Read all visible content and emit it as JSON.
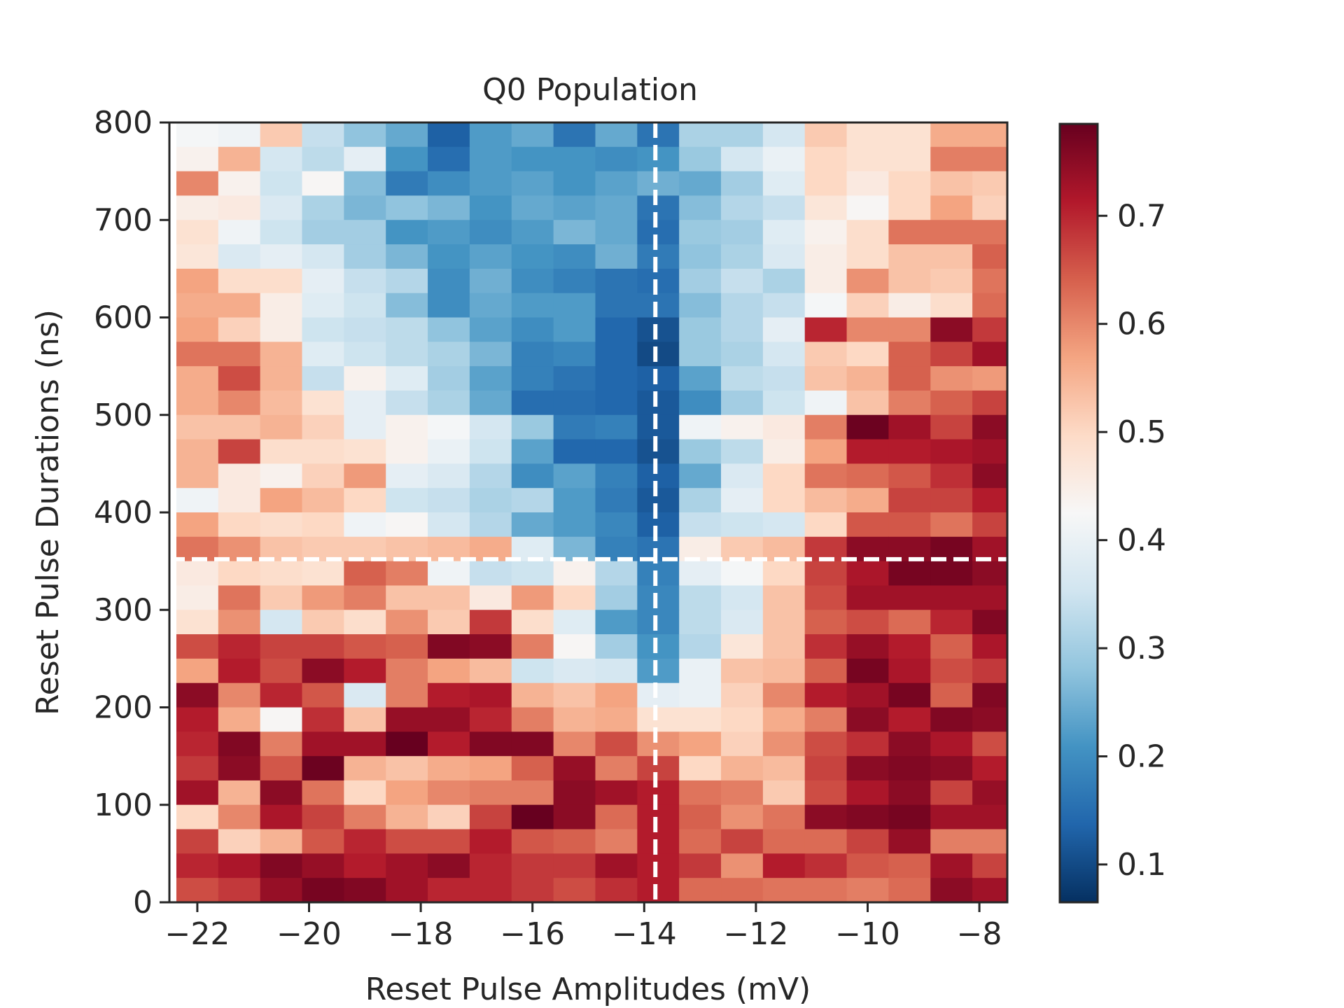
{
  "chart_data": {
    "type": "heatmap",
    "title": "Q0 Population",
    "xlabel": "Reset Pulse Amplitudes (mV)",
    "ylabel": "Reset Pulse Durations (ns)",
    "colormap": "RdBu_r",
    "xlim": [
      -22.5,
      -7.5
    ],
    "ylim": [
      0,
      800
    ],
    "x_ticks": [
      "−22",
      "−20",
      "−18",
      "−16",
      "−14",
      "−12",
      "−10",
      "−8"
    ],
    "x_tick_values": [
      -22,
      -20,
      -18,
      -16,
      -14,
      -12,
      -10,
      -8
    ],
    "y_ticks": [
      "0",
      "100",
      "200",
      "300",
      "400",
      "500",
      "600",
      "700",
      "800"
    ],
    "y_tick_values": [
      0,
      100,
      200,
      300,
      400,
      500,
      600,
      700,
      800
    ],
    "colorbar": {
      "vmin": 0.065,
      "vmax": 0.785,
      "ticks": [
        "0.1",
        "0.2",
        "0.3",
        "0.4",
        "0.5",
        "0.6",
        "0.7"
      ],
      "tick_values": [
        0.1,
        0.2,
        0.3,
        0.4,
        0.5,
        0.6,
        0.7
      ]
    },
    "x_centers": [
      -22,
      -21.25,
      -20.5,
      -19.75,
      -19,
      -18.25,
      -17.5,
      -16.75,
      -16,
      -15.25,
      -14.5,
      -13.75,
      -13,
      -12.25,
      -11.5,
      -10.75,
      -10,
      -9.25,
      -8.5,
      -7.75
    ],
    "y_centers": [
      12.5,
      37.5,
      62.5,
      87.5,
      112.5,
      137.5,
      162.5,
      187.5,
      212.5,
      237.5,
      262.5,
      287.5,
      312.5,
      337.5,
      362.5,
      387.5,
      412.5,
      437.5,
      462.5,
      487.5,
      512.5,
      537.5,
      562.5,
      587.5,
      612.5,
      637.5,
      662.5,
      687.5,
      712.5,
      737.5,
      762.5,
      787.5
    ],
    "z_rows_top_to_bottom": [
      [
        0.42,
        0.41,
        0.52,
        0.34,
        0.28,
        0.24,
        0.13,
        0.22,
        0.24,
        0.16,
        0.24,
        0.16,
        0.31,
        0.31,
        0.36,
        0.52,
        0.48,
        0.48,
        0.56,
        0.56
      ],
      [
        0.44,
        0.55,
        0.36,
        0.33,
        0.39,
        0.21,
        0.15,
        0.22,
        0.21,
        0.21,
        0.2,
        0.21,
        0.29,
        0.36,
        0.4,
        0.5,
        0.48,
        0.48,
        0.61,
        0.61
      ],
      [
        0.6,
        0.44,
        0.35,
        0.43,
        0.27,
        0.17,
        0.2,
        0.22,
        0.23,
        0.21,
        0.23,
        0.25,
        0.24,
        0.3,
        0.38,
        0.5,
        0.46,
        0.5,
        0.53,
        0.52
      ],
      [
        0.45,
        0.46,
        0.37,
        0.31,
        0.26,
        0.28,
        0.26,
        0.21,
        0.24,
        0.23,
        0.24,
        0.16,
        0.27,
        0.32,
        0.34,
        0.47,
        0.43,
        0.5,
        0.57,
        0.51
      ],
      [
        0.48,
        0.41,
        0.35,
        0.3,
        0.3,
        0.21,
        0.22,
        0.2,
        0.22,
        0.26,
        0.24,
        0.15,
        0.29,
        0.3,
        0.38,
        0.44,
        0.49,
        0.62,
        0.62,
        0.62
      ],
      [
        0.47,
        0.37,
        0.39,
        0.36,
        0.3,
        0.26,
        0.21,
        0.23,
        0.21,
        0.2,
        0.25,
        0.17,
        0.28,
        0.31,
        0.37,
        0.45,
        0.49,
        0.53,
        0.53,
        0.64
      ],
      [
        0.57,
        0.49,
        0.49,
        0.39,
        0.34,
        0.32,
        0.2,
        0.25,
        0.2,
        0.18,
        0.16,
        0.15,
        0.3,
        0.34,
        0.31,
        0.45,
        0.59,
        0.53,
        0.52,
        0.62
      ],
      [
        0.56,
        0.56,
        0.45,
        0.38,
        0.35,
        0.27,
        0.2,
        0.24,
        0.22,
        0.22,
        0.16,
        0.16,
        0.27,
        0.32,
        0.34,
        0.42,
        0.51,
        0.45,
        0.49,
        0.63
      ],
      [
        0.57,
        0.51,
        0.45,
        0.35,
        0.34,
        0.33,
        0.28,
        0.23,
        0.2,
        0.22,
        0.14,
        0.11,
        0.29,
        0.32,
        0.39,
        0.7,
        0.6,
        0.6,
        0.75,
        0.68
      ],
      [
        0.62,
        0.62,
        0.55,
        0.38,
        0.35,
        0.33,
        0.31,
        0.26,
        0.18,
        0.19,
        0.14,
        0.1,
        0.29,
        0.31,
        0.36,
        0.52,
        0.5,
        0.64,
        0.67,
        0.73
      ],
      [
        0.56,
        0.66,
        0.55,
        0.34,
        0.44,
        0.38,
        0.3,
        0.23,
        0.18,
        0.16,
        0.14,
        0.13,
        0.23,
        0.33,
        0.34,
        0.53,
        0.55,
        0.64,
        0.59,
        0.58
      ],
      [
        0.56,
        0.6,
        0.54,
        0.48,
        0.39,
        0.34,
        0.31,
        0.24,
        0.15,
        0.15,
        0.14,
        0.12,
        0.2,
        0.3,
        0.35,
        0.41,
        0.53,
        0.61,
        0.64,
        0.67
      ],
      [
        0.53,
        0.53,
        0.55,
        0.51,
        0.39,
        0.44,
        0.42,
        0.36,
        0.29,
        0.17,
        0.18,
        0.12,
        0.41,
        0.44,
        0.46,
        0.61,
        0.78,
        0.73,
        0.67,
        0.75
      ],
      [
        0.55,
        0.67,
        0.49,
        0.49,
        0.48,
        0.44,
        0.4,
        0.35,
        0.23,
        0.14,
        0.14,
        0.11,
        0.29,
        0.33,
        0.45,
        0.57,
        0.71,
        0.71,
        0.72,
        0.73
      ],
      [
        0.55,
        0.46,
        0.44,
        0.51,
        0.58,
        0.39,
        0.37,
        0.32,
        0.2,
        0.23,
        0.18,
        0.13,
        0.24,
        0.37,
        0.5,
        0.62,
        0.63,
        0.65,
        0.69,
        0.75
      ],
      [
        0.41,
        0.46,
        0.57,
        0.54,
        0.5,
        0.35,
        0.34,
        0.31,
        0.32,
        0.22,
        0.17,
        0.12,
        0.31,
        0.39,
        0.5,
        0.54,
        0.56,
        0.67,
        0.67,
        0.71
      ],
      [
        0.57,
        0.5,
        0.49,
        0.5,
        0.41,
        0.43,
        0.36,
        0.32,
        0.24,
        0.22,
        0.19,
        0.13,
        0.34,
        0.35,
        0.36,
        0.5,
        0.65,
        0.65,
        0.62,
        0.67
      ],
      [
        0.62,
        0.59,
        0.53,
        0.52,
        0.52,
        0.53,
        0.54,
        0.56,
        0.38,
        0.26,
        0.18,
        0.16,
        0.45,
        0.52,
        0.54,
        0.68,
        0.75,
        0.75,
        0.77,
        0.73
      ],
      [
        0.46,
        0.5,
        0.49,
        0.48,
        0.64,
        0.61,
        0.41,
        0.34,
        0.35,
        0.44,
        0.32,
        0.18,
        0.39,
        0.42,
        0.5,
        0.67,
        0.72,
        0.77,
        0.77,
        0.75
      ],
      [
        0.45,
        0.62,
        0.52,
        0.58,
        0.61,
        0.53,
        0.53,
        0.46,
        0.58,
        0.5,
        0.3,
        0.19,
        0.33,
        0.36,
        0.53,
        0.66,
        0.73,
        0.73,
        0.73,
        0.73
      ],
      [
        0.48,
        0.59,
        0.36,
        0.52,
        0.49,
        0.59,
        0.52,
        0.68,
        0.49,
        0.38,
        0.22,
        0.19,
        0.33,
        0.37,
        0.53,
        0.64,
        0.66,
        0.63,
        0.7,
        0.76
      ],
      [
        0.66,
        0.7,
        0.67,
        0.67,
        0.65,
        0.64,
        0.76,
        0.75,
        0.61,
        0.43,
        0.3,
        0.21,
        0.32,
        0.47,
        0.53,
        0.69,
        0.74,
        0.71,
        0.64,
        0.72
      ],
      [
        0.57,
        0.71,
        0.66,
        0.75,
        0.71,
        0.61,
        0.57,
        0.54,
        0.35,
        0.37,
        0.36,
        0.22,
        0.4,
        0.53,
        0.54,
        0.64,
        0.77,
        0.72,
        0.66,
        0.68
      ],
      [
        0.75,
        0.6,
        0.7,
        0.65,
        0.37,
        0.61,
        0.71,
        0.72,
        0.55,
        0.53,
        0.57,
        0.39,
        0.4,
        0.51,
        0.6,
        0.71,
        0.73,
        0.77,
        0.64,
        0.76
      ],
      [
        0.71,
        0.56,
        0.43,
        0.69,
        0.53,
        0.74,
        0.74,
        0.7,
        0.61,
        0.55,
        0.56,
        0.48,
        0.48,
        0.5,
        0.56,
        0.61,
        0.75,
        0.71,
        0.76,
        0.75
      ],
      [
        0.7,
        0.76,
        0.61,
        0.73,
        0.73,
        0.79,
        0.71,
        0.76,
        0.76,
        0.6,
        0.66,
        0.59,
        0.57,
        0.51,
        0.59,
        0.66,
        0.69,
        0.75,
        0.72,
        0.66
      ],
      [
        0.68,
        0.75,
        0.65,
        0.78,
        0.55,
        0.53,
        0.56,
        0.57,
        0.64,
        0.74,
        0.61,
        0.67,
        0.5,
        0.55,
        0.54,
        0.67,
        0.75,
        0.76,
        0.75,
        0.71
      ],
      [
        0.73,
        0.55,
        0.75,
        0.62,
        0.5,
        0.57,
        0.6,
        0.61,
        0.61,
        0.75,
        0.73,
        0.71,
        0.62,
        0.61,
        0.52,
        0.66,
        0.72,
        0.75,
        0.67,
        0.74
      ],
      [
        0.5,
        0.6,
        0.72,
        0.67,
        0.61,
        0.55,
        0.51,
        0.67,
        0.79,
        0.75,
        0.63,
        0.71,
        0.64,
        0.59,
        0.62,
        0.75,
        0.76,
        0.77,
        0.73,
        0.73
      ],
      [
        0.67,
        0.51,
        0.55,
        0.65,
        0.7,
        0.66,
        0.66,
        0.71,
        0.65,
        0.64,
        0.61,
        0.71,
        0.63,
        0.67,
        0.63,
        0.63,
        0.67,
        0.74,
        0.61,
        0.61
      ],
      [
        0.7,
        0.72,
        0.76,
        0.74,
        0.71,
        0.73,
        0.75,
        0.7,
        0.68,
        0.68,
        0.73,
        0.71,
        0.68,
        0.59,
        0.71,
        0.69,
        0.65,
        0.64,
        0.73,
        0.67
      ],
      [
        0.66,
        0.68,
        0.74,
        0.77,
        0.76,
        0.73,
        0.7,
        0.7,
        0.68,
        0.66,
        0.69,
        0.71,
        0.63,
        0.63,
        0.62,
        0.62,
        0.61,
        0.63,
        0.75,
        0.73
      ]
    ],
    "reference_lines": {
      "vertical_x": -13.8,
      "horizontal_y": 352,
      "color": "#ffffff",
      "style": "dashed"
    }
  }
}
